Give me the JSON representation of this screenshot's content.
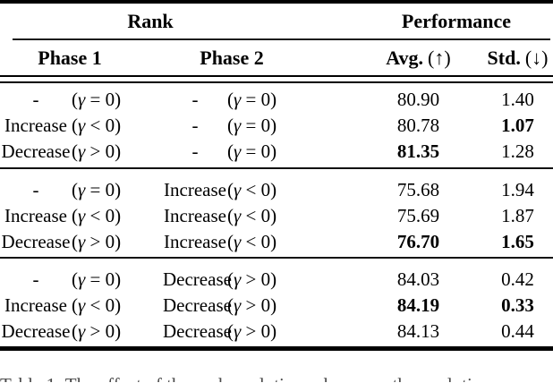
{
  "table": {
    "header": {
      "group_rank": "Rank",
      "group_performance": "Performance",
      "phase1": "Phase 1",
      "phase2": "Phase 2",
      "avg_label": "Avg.",
      "avg_suffix": "(↑)",
      "std_label": "Std.",
      "std_suffix": "(↓)"
    },
    "groups": [
      {
        "rows": [
          {
            "phase1_word": "-",
            "phase1_cond": "(γ = 0)",
            "phase2_word": "-",
            "phase2_cond": "(γ = 0)",
            "avg": "80.90",
            "std": "1.40",
            "avg_bold": false,
            "std_bold": false
          },
          {
            "phase1_word": "Increase",
            "phase1_cond": "(γ < 0)",
            "phase2_word": "-",
            "phase2_cond": "(γ = 0)",
            "avg": "80.78",
            "std": "1.07",
            "avg_bold": false,
            "std_bold": true
          },
          {
            "phase1_word": "Decrease",
            "phase1_cond": "(γ > 0)",
            "phase2_word": "-",
            "phase2_cond": "(γ = 0)",
            "avg": "81.35",
            "std": "1.28",
            "avg_bold": true,
            "std_bold": false
          }
        ]
      },
      {
        "rows": [
          {
            "phase1_word": "-",
            "phase1_cond": "(γ = 0)",
            "phase2_word": "Increase",
            "phase2_cond": "(γ < 0)",
            "avg": "75.68",
            "std": "1.94",
            "avg_bold": false,
            "std_bold": false
          },
          {
            "phase1_word": "Increase",
            "phase1_cond": "(γ < 0)",
            "phase2_word": "Increase",
            "phase2_cond": "(γ < 0)",
            "avg": "75.69",
            "std": "1.87",
            "avg_bold": false,
            "std_bold": false
          },
          {
            "phase1_word": "Decrease",
            "phase1_cond": "(γ > 0)",
            "phase2_word": "Increase",
            "phase2_cond": "(γ < 0)",
            "avg": "76.70",
            "std": "1.65",
            "avg_bold": true,
            "std_bold": true
          }
        ]
      },
      {
        "rows": [
          {
            "phase1_word": "-",
            "phase1_cond": "(γ = 0)",
            "phase2_word": "Decrease",
            "phase2_cond": "(γ > 0)",
            "avg": "84.03",
            "std": "0.42",
            "avg_bold": false,
            "std_bold": false
          },
          {
            "phase1_word": "Increase",
            "phase1_cond": "(γ < 0)",
            "phase2_word": "Decrease",
            "phase2_cond": "(γ > 0)",
            "avg": "84.19",
            "std": "0.33",
            "avg_bold": true,
            "std_bold": true
          },
          {
            "phase1_word": "Decrease",
            "phase1_cond": "(γ > 0)",
            "phase2_word": "Decrease",
            "phase2_cond": "(γ > 0)",
            "avg": "84.13",
            "std": "0.44",
            "avg_bold": false,
            "std_bold": false
          }
        ]
      }
    ]
  },
  "caption_fragment": "Table 1: The effect of the rank evolution scheme on the evolution",
  "colors": {
    "text": "#000000",
    "background": "#ffffff",
    "rule": "#000000"
  }
}
